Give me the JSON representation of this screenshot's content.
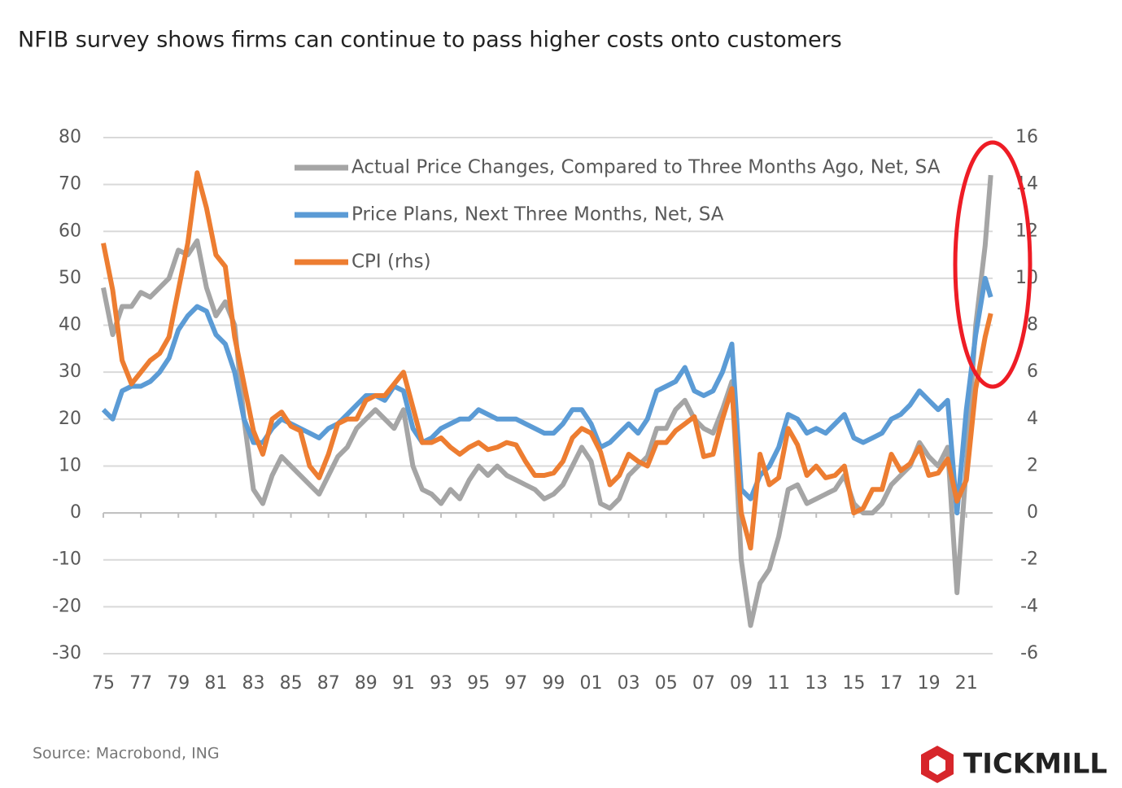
{
  "chart_data": {
    "type": "line",
    "title": "NFIB survey shows firms can continue to pass higher costs onto customers",
    "source": "Source: Macrobond, ING",
    "brand": "TICKMILL",
    "x": [
      1975.0,
      1975.5,
      1976.0,
      1976.5,
      1977.0,
      1977.5,
      1978.0,
      1978.5,
      1979.0,
      1979.5,
      1980.0,
      1980.5,
      1981.0,
      1981.5,
      1982.0,
      1982.5,
      1983.0,
      1983.5,
      1984.0,
      1984.5,
      1985.0,
      1985.5,
      1986.0,
      1986.5,
      1987.0,
      1987.5,
      1988.0,
      1988.5,
      1989.0,
      1989.5,
      1990.0,
      1990.5,
      1991.0,
      1991.5,
      1992.0,
      1992.5,
      1993.0,
      1993.5,
      1994.0,
      1994.5,
      1995.0,
      1995.5,
      1996.0,
      1996.5,
      1997.0,
      1997.5,
      1998.0,
      1998.5,
      1999.0,
      1999.5,
      2000.0,
      2000.5,
      2001.0,
      2001.5,
      2002.0,
      2002.5,
      2003.0,
      2003.5,
      2004.0,
      2004.5,
      2005.0,
      2005.5,
      2006.0,
      2006.5,
      2007.0,
      2007.5,
      2008.0,
      2008.5,
      2009.0,
      2009.5,
      2010.0,
      2010.5,
      2011.0,
      2011.5,
      2012.0,
      2012.5,
      2013.0,
      2013.5,
      2014.0,
      2014.5,
      2015.0,
      2015.5,
      2016.0,
      2016.5,
      2017.0,
      2017.5,
      2018.0,
      2018.5,
      2019.0,
      2019.5,
      2020.0,
      2020.5,
      2021.0,
      2021.5,
      2022.0,
      2022.3
    ],
    "series": [
      {
        "name": "Actual Price Changes, Compared to Three Months Ago, Net, SA",
        "color": "#a5a5a5",
        "values": [
          48,
          38,
          44,
          44,
          47,
          46,
          48,
          50,
          56,
          55,
          58,
          48,
          42,
          45,
          40,
          20,
          5,
          2,
          8,
          12,
          10,
          8,
          6,
          4,
          8,
          12,
          14,
          18,
          20,
          22,
          20,
          18,
          22,
          10,
          5,
          4,
          2,
          5,
          3,
          7,
          10,
          8,
          10,
          8,
          7,
          6,
          5,
          3,
          4,
          6,
          10,
          14,
          11,
          2,
          1,
          3,
          8,
          10,
          12,
          18,
          18,
          22,
          24,
          20,
          18,
          17,
          22,
          28,
          -10,
          -24,
          -15,
          -12,
          -5,
          5,
          6,
          2,
          3,
          4,
          5,
          8,
          2,
          0,
          0,
          2,
          6,
          8,
          10,
          15,
          12,
          10,
          14,
          -17,
          10,
          40,
          57,
          72
        ]
      },
      {
        "name": "Price Plans, Next Three Months, Net, SA",
        "color": "#5b9bd5",
        "values": [
          22,
          20,
          26,
          27,
          27,
          28,
          30,
          33,
          39,
          42,
          44,
          43,
          38,
          36,
          30,
          20,
          15,
          15,
          18,
          20,
          19,
          18,
          17,
          16,
          18,
          19,
          21,
          23,
          25,
          25,
          24,
          27,
          26,
          18,
          15,
          16,
          18,
          19,
          20,
          20,
          22,
          21,
          20,
          20,
          20,
          19,
          18,
          17,
          17,
          19,
          22,
          22,
          19,
          14,
          15,
          17,
          19,
          17,
          20,
          26,
          27,
          28,
          31,
          26,
          25,
          26,
          30,
          36,
          5,
          3,
          8,
          10,
          14,
          21,
          20,
          17,
          18,
          17,
          19,
          21,
          16,
          15,
          16,
          17,
          20,
          21,
          23,
          26,
          24,
          22,
          24,
          0,
          22,
          38,
          50,
          46
        ]
      },
      {
        "name": "CPI (rhs)",
        "color": "#ed7d31",
        "axis": "y2",
        "values": [
          11.5,
          9.5,
          6.5,
          5.5,
          6.0,
          6.5,
          6.8,
          7.5,
          9.5,
          11.5,
          14.5,
          13.0,
          11.0,
          10.5,
          7.5,
          5.5,
          3.5,
          2.5,
          4.0,
          4.3,
          3.7,
          3.5,
          2.0,
          1.5,
          2.5,
          3.8,
          4.0,
          4.0,
          4.8,
          5.0,
          5.0,
          5.5,
          6.0,
          4.5,
          3.0,
          3.0,
          3.2,
          2.8,
          2.5,
          2.8,
          3.0,
          2.7,
          2.8,
          3.0,
          2.9,
          2.2,
          1.6,
          1.6,
          1.7,
          2.2,
          3.2,
          3.6,
          3.4,
          2.6,
          1.2,
          1.6,
          2.5,
          2.2,
          2.0,
          3.0,
          3.0,
          3.5,
          3.8,
          4.1,
          2.4,
          2.5,
          4.0,
          5.3,
          0.0,
          -1.5,
          2.5,
          1.2,
          1.5,
          3.6,
          2.9,
          1.6,
          2.0,
          1.5,
          1.6,
          2.0,
          0.0,
          0.2,
          1.0,
          1.0,
          2.5,
          1.8,
          2.1,
          2.8,
          1.6,
          1.7,
          2.3,
          0.5,
          1.4,
          5.3,
          7.5,
          8.5
        ]
      }
    ],
    "xlim": [
      1975,
      2022.4
    ],
    "xticks": [
      {
        "value": 1975,
        "label": "75"
      },
      {
        "value": 1977,
        "label": "77"
      },
      {
        "value": 1979,
        "label": "79"
      },
      {
        "value": 1981,
        "label": "81"
      },
      {
        "value": 1983,
        "label": "83"
      },
      {
        "value": 1985,
        "label": "85"
      },
      {
        "value": 1987,
        "label": "87"
      },
      {
        "value": 1989,
        "label": "89"
      },
      {
        "value": 1991,
        "label": "91"
      },
      {
        "value": 1993,
        "label": "93"
      },
      {
        "value": 1995,
        "label": "95"
      },
      {
        "value": 1997,
        "label": "97"
      },
      {
        "value": 1999,
        "label": "99"
      },
      {
        "value": 2001,
        "label": "01"
      },
      {
        "value": 2003,
        "label": "03"
      },
      {
        "value": 2005,
        "label": "05"
      },
      {
        "value": 2007,
        "label": "07"
      },
      {
        "value": 2009,
        "label": "09"
      },
      {
        "value": 2011,
        "label": "11"
      },
      {
        "value": 2013,
        "label": "13"
      },
      {
        "value": 2015,
        "label": "15"
      },
      {
        "value": 2017,
        "label": "17"
      },
      {
        "value": 2019,
        "label": "19"
      },
      {
        "value": 2021,
        "label": "21"
      }
    ],
    "ylim": [
      -30,
      80
    ],
    "yticks": [
      -30,
      -20,
      -10,
      0,
      10,
      20,
      30,
      40,
      50,
      60,
      70,
      80
    ],
    "y2lim": [
      -6,
      16
    ],
    "y2ticks": [
      -6,
      -4,
      -2,
      0,
      2,
      4,
      6,
      8,
      10,
      12,
      14,
      16
    ],
    "grid": true,
    "legend": "top"
  }
}
